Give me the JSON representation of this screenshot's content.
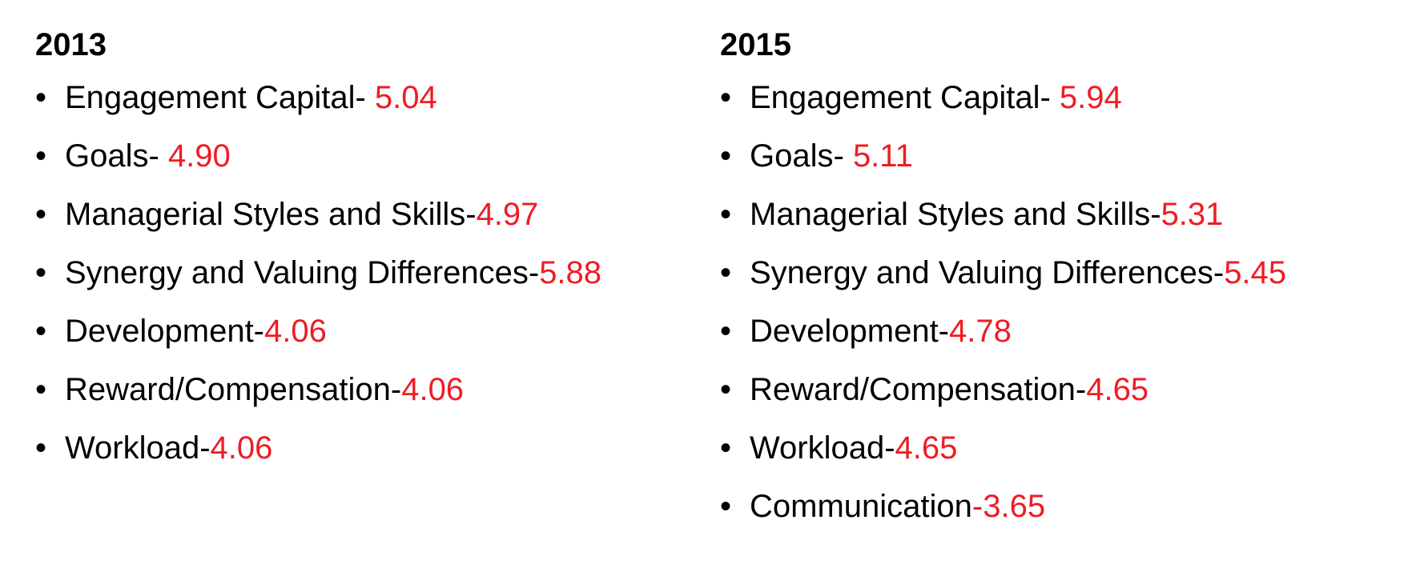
{
  "colors": {
    "text": "#000000",
    "value": "#ee1c25"
  },
  "columns": [
    {
      "heading": "2013",
      "items": [
        {
          "label": "Engagement Capital- ",
          "value": "5.04"
        },
        {
          "label": "Goals- ",
          "value": "4.90"
        },
        {
          "label": "Managerial Styles and Skills-",
          "value": "4.97"
        },
        {
          "label": "Synergy and Valuing Differences-",
          "value": "5.88"
        },
        {
          "label": "Development-",
          "value": "4.06"
        },
        {
          "label": "Reward/Compensation-",
          "value": "4.06"
        },
        {
          "label": "Workload-",
          "value": "4.06"
        }
      ]
    },
    {
      "heading": "2015",
      "items": [
        {
          "label": "Engagement Capital- ",
          "value": "5.94"
        },
        {
          "label": "Goals- ",
          "value": "5.11"
        },
        {
          "label": "Managerial Styles and Skills-",
          "value": "5.31"
        },
        {
          "label": "Synergy and Valuing Differences-",
          "value": "5.45"
        },
        {
          "label": "Development-",
          "value": "4.78"
        },
        {
          "label": "Reward/Compensation-",
          "value": "4.65"
        },
        {
          "label": "Workload-",
          "value": "4.65"
        },
        {
          "label": "Communication",
          "value": "-3.65"
        }
      ]
    }
  ]
}
